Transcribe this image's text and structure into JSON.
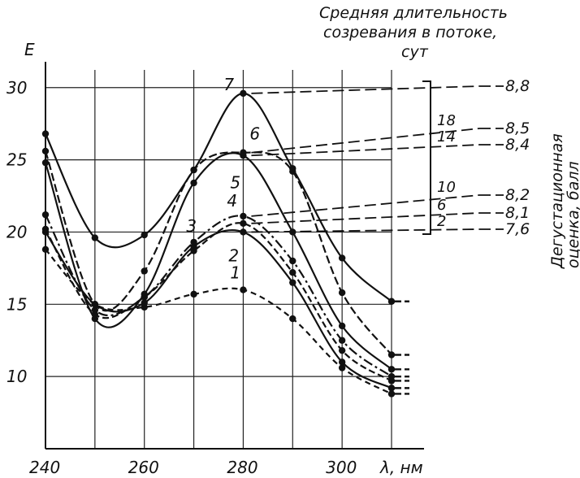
{
  "chart_data": {
    "type": "line",
    "y_unit_label": "Е",
    "xlabel": "λ, нм",
    "x_ticks": [
      240,
      260,
      280,
      300
    ],
    "y_ticks": [
      10,
      15,
      20,
      25,
      30
    ],
    "y_tick_labels": [
      "10",
      "15",
      "20",
      "25",
      "30"
    ],
    "xlim": [
      240,
      310
    ],
    "ylim": [
      5,
      31
    ],
    "grid": true,
    "x": [
      240,
      250,
      260,
      270,
      280,
      290,
      300,
      310
    ],
    "series": [
      {
        "name": "1",
        "values": [
          18.8,
          15.0,
          14.8,
          15.7,
          16.0,
          14.0,
          10.6,
          8.8
        ]
      },
      {
        "name": "2",
        "values": [
          20.0,
          15.0,
          15.1,
          19.0,
          20.0,
          16.5,
          11.0,
          9.2
        ]
      },
      {
        "name": "3",
        "values": [
          20.2,
          14.3,
          15.5,
          18.7,
          20.6,
          17.2,
          11.8,
          9.7
        ]
      },
      {
        "name": "4",
        "values": [
          21.2,
          14.6,
          15.5,
          19.3,
          21.1,
          18.0,
          12.5,
          10.0
        ]
      },
      {
        "name": "5",
        "values": [
          24.8,
          14.0,
          15.7,
          23.4,
          25.3,
          20.0,
          13.5,
          10.5
        ]
      },
      {
        "name": "6",
        "values": [
          25.6,
          15.0,
          17.3,
          24.3,
          25.5,
          24.2,
          15.8,
          11.5
        ]
      },
      {
        "name": "7",
        "values": [
          26.8,
          19.6,
          19.8,
          24.3,
          29.6,
          24.4,
          18.2,
          15.2
        ]
      }
    ],
    "annotations": [
      {
        "maturation_days": "2",
        "score": "7,6"
      },
      {
        "maturation_days": "6",
        "score": "8,1"
      },
      {
        "maturation_days": "10",
        "score": "8,2"
      },
      {
        "maturation_days": "14",
        "score": "8,4"
      },
      {
        "maturation_days": "18",
        "score": "8,5"
      },
      {
        "maturation_days": "",
        "score": "8,8"
      }
    ],
    "header": {
      "line1": "Средняя длительность",
      "line2": "созревания в потоке,",
      "line3": "сут"
    },
    "right_label": {
      "line1": "Дегустационная",
      "line2": "оценка, балл"
    }
  }
}
